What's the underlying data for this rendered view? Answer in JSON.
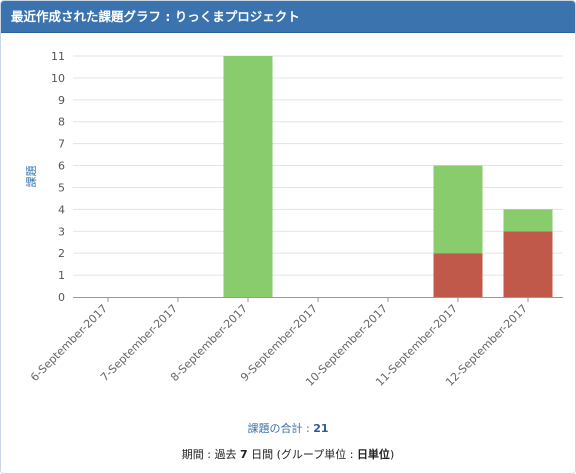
{
  "header": {
    "title": "最近作成された課題グラフ : りっくまプロジェクト"
  },
  "footer": {
    "total_label": "課題の合計 : ",
    "total_value": "21",
    "period_prefix": "期間 : 過去 ",
    "period_days": "7",
    "period_middle": " 日間 (グループ単位 : ",
    "period_unit": "日単位",
    "period_suffix": ")"
  },
  "colors": {
    "header_bg": "#3a73ad",
    "green": "#88cc6e",
    "red": "#c0594a",
    "axis_label": "#3a73ad"
  },
  "chart_data": {
    "type": "bar",
    "stacked": true,
    "ylabel": "課題",
    "ylim": [
      0,
      11
    ],
    "grid": true,
    "categories": [
      "6-September-2017",
      "7-September-2017",
      "8-September-2017",
      "9-September-2017",
      "10-September-2017",
      "11-September-2017",
      "12-September-2017"
    ],
    "yticks": [
      0,
      1,
      2,
      3,
      4,
      5,
      6,
      7,
      8,
      9,
      10,
      11
    ],
    "series": [
      {
        "color": "#c0594a",
        "values": [
          0,
          0,
          0,
          0,
          0,
          2,
          3
        ]
      },
      {
        "color": "#88cc6e",
        "values": [
          0,
          0,
          11,
          0,
          0,
          4,
          1
        ]
      }
    ]
  }
}
